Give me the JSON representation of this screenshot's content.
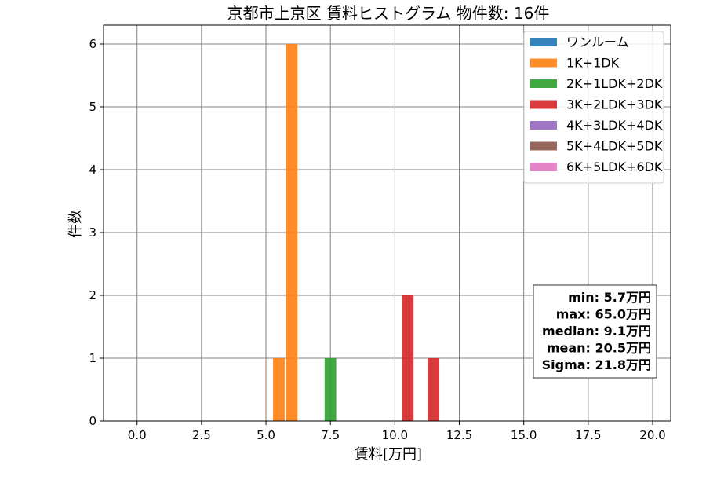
{
  "chart_data": {
    "type": "bar",
    "title": "京都市上京区 賃料ヒストグラム 物件数: 16件",
    "xlabel": "賃料[万円]",
    "ylabel": "件数",
    "xlim": [
      -1.3,
      20.7
    ],
    "ylim": [
      0,
      6.3
    ],
    "xticks": [
      0.0,
      2.5,
      5.0,
      7.5,
      10.0,
      12.5,
      15.0,
      17.5,
      20.0
    ],
    "xtick_labels": [
      "0.0",
      "2.5",
      "5.0",
      "7.5",
      "10.0",
      "12.5",
      "15.0",
      "17.5",
      "20.0"
    ],
    "yticks": [
      0,
      1,
      2,
      3,
      4,
      5,
      6
    ],
    "ytick_labels": [
      "0",
      "1",
      "2",
      "3",
      "4",
      "5",
      "6"
    ],
    "grid": true,
    "legend_position": "top-right",
    "bar_width": 0.45,
    "series": [
      {
        "name": "ワンルーム",
        "color": "#1f77b4",
        "bars": []
      },
      {
        "name": "1K+1DK",
        "color": "#ff7f0e",
        "bars": [
          {
            "x": 5.5,
            "value": 1
          },
          {
            "x": 6.0,
            "value": 6
          }
        ]
      },
      {
        "name": "2K+1LDK+2DK",
        "color": "#2ca02c",
        "bars": [
          {
            "x": 7.5,
            "value": 1
          }
        ]
      },
      {
        "name": "3K+2LDK+3DK",
        "color": "#d62728",
        "bars": [
          {
            "x": 10.5,
            "value": 2
          },
          {
            "x": 11.5,
            "value": 1
          }
        ]
      },
      {
        "name": "4K+3LDK+4DK",
        "color": "#9467bd",
        "bars": []
      },
      {
        "name": "5K+4LDK+5DK",
        "color": "#8c564b",
        "bars": []
      },
      {
        "name": "6K+5LDK+6DK",
        "color": "#e377c2",
        "bars": []
      }
    ],
    "stats_box": {
      "lines": [
        "min: 5.7万円",
        "max: 65.0万円",
        "median: 9.1万円",
        "mean: 20.5万円",
        "Sigma: 21.8万円"
      ]
    }
  }
}
